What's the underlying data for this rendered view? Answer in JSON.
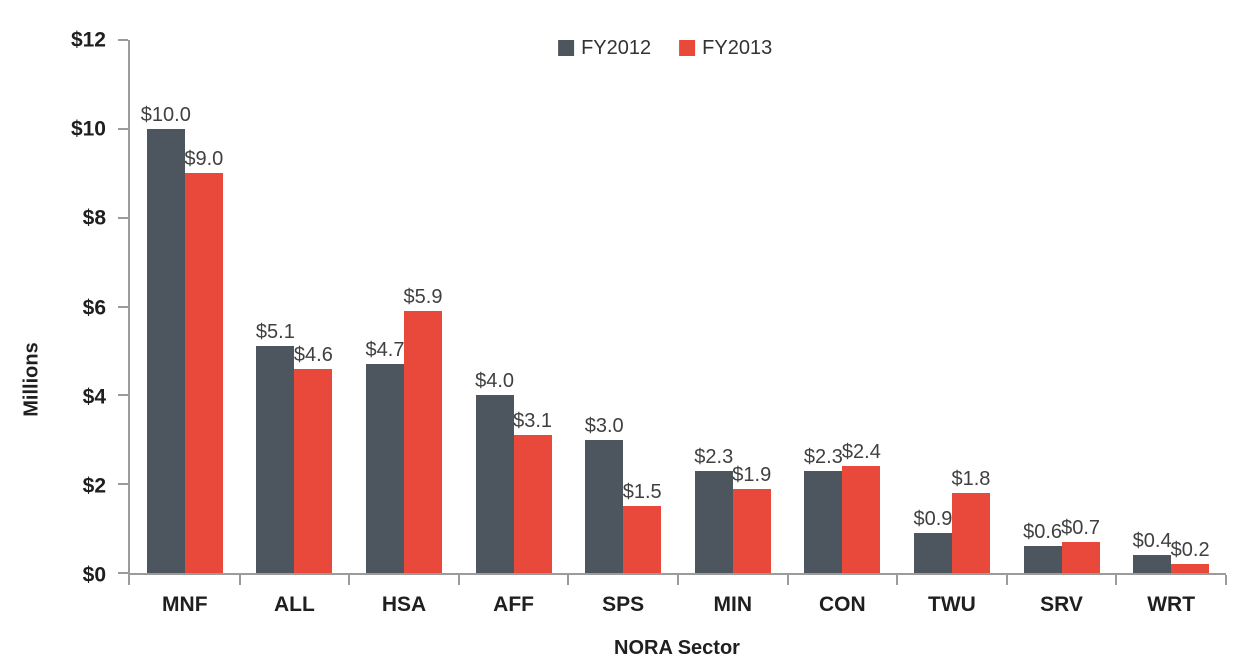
{
  "chart_data": {
    "type": "bar",
    "title": "",
    "categories": [
      "MNF",
      "ALL",
      "HSA",
      "AFF",
      "SPS",
      "MIN",
      "CON",
      "TWU",
      "SRV",
      "WRT"
    ],
    "series": [
      {
        "name": "FY2012",
        "color": "#4d565f",
        "values": [
          10.0,
          5.1,
          4.7,
          4.0,
          3.0,
          2.3,
          2.3,
          0.9,
          0.6,
          0.4
        ],
        "labels": [
          "$10.0",
          "$5.1",
          "$4.7",
          "$4.0",
          "$3.0",
          "$2.3",
          "$2.3",
          "$0.9",
          "$0.6",
          "$0.4"
        ]
      },
      {
        "name": "FY2013",
        "color": "#e8493a",
        "values": [
          9.0,
          4.6,
          5.9,
          3.1,
          1.5,
          1.9,
          2.4,
          1.8,
          0.7,
          0.2
        ],
        "labels": [
          "$9.0",
          "$4.6",
          "$5.9",
          "$3.1",
          "$1.5",
          "$1.9",
          "$2.4",
          "$1.8",
          "$0.7",
          "$0.2"
        ]
      }
    ],
    "xlabel": "NORA Sector",
    "ylabel": "Millions",
    "ylim": [
      0,
      12
    ],
    "ytick_step": 2,
    "ytick_labels": [
      "$0",
      "$2",
      "$4",
      "$6",
      "$8",
      "$10",
      "$12"
    ],
    "grid": false,
    "legend_position": "top-center"
  },
  "colors": {
    "axis": "#9b9b9b",
    "tick_text": "#1f1f1f",
    "data_label_text": "#404040"
  }
}
